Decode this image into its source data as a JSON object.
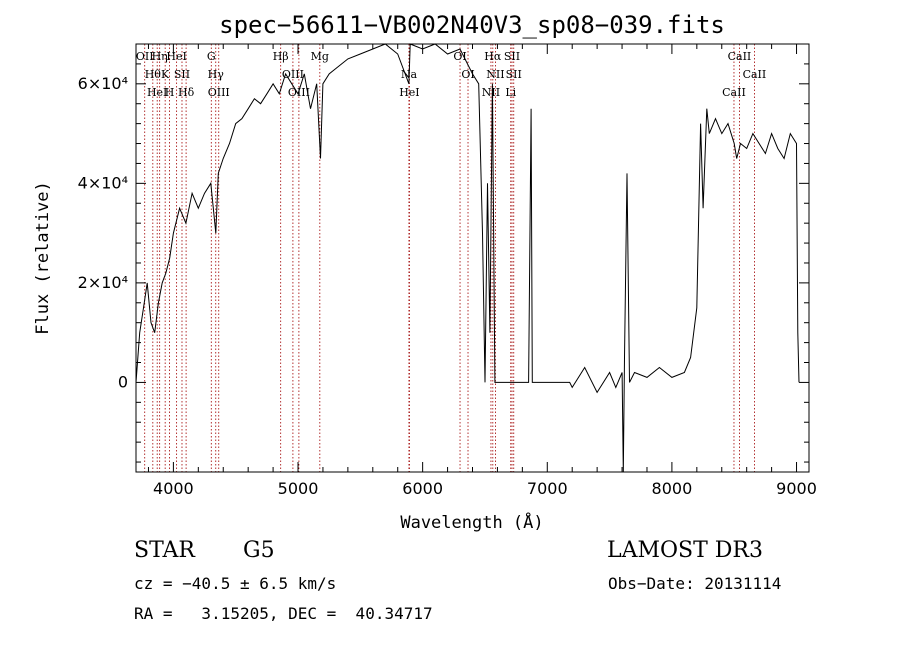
{
  "chart_data": {
    "type": "line",
    "title": "spec−56611−VB002N40V3_sp08−039.fits",
    "xlabel": "Wavelength (Å)",
    "ylabel": "Flux (relative)",
    "xlim": [
      3700,
      9100
    ],
    "ylim": [
      -18000,
      68000
    ],
    "x_ticks": [
      4000,
      5000,
      6000,
      7000,
      8000,
      9000
    ],
    "y_ticks": [
      {
        "value": 0,
        "label": "0"
      },
      {
        "value": 20000,
        "label": "2×10⁴"
      },
      {
        "value": 40000,
        "label": "4×10⁴"
      },
      {
        "value": 60000,
        "label": "6×10⁴"
      }
    ],
    "grid": false,
    "line_color": "#000000",
    "marker_color": "#a00000",
    "spectrum": {
      "x": [
        3700,
        3730,
        3760,
        3790,
        3820,
        3850,
        3880,
        3910,
        3940,
        3970,
        4000,
        4050,
        4100,
        4150,
        4200,
        4250,
        4300,
        4340,
        4360,
        4400,
        4450,
        4500,
        4550,
        4600,
        4650,
        4700,
        4750,
        4800,
        4850,
        4900,
        4950,
        5000,
        5050,
        5100,
        5150,
        5180,
        5200,
        5250,
        5300,
        5400,
        5500,
        5600,
        5700,
        5800,
        5890,
        5900,
        6000,
        6100,
        6200,
        6300,
        6400,
        6450,
        6480,
        6500,
        6520,
        6540,
        6560,
        6580,
        6600,
        6650,
        6700,
        6750,
        6800,
        6850,
        6870,
        6880,
        6900,
        7000,
        7100,
        7180,
        7200,
        7300,
        7400,
        7500,
        7550,
        7600,
        7610,
        7620,
        7640,
        7660,
        7700,
        7800,
        7900,
        8000,
        8100,
        8150,
        8200,
        8230,
        8250,
        8280,
        8300,
        8350,
        8400,
        8450,
        8500,
        8520,
        8550,
        8600,
        8650,
        8700,
        8750,
        8800,
        8850,
        8900,
        8950,
        9000,
        9010,
        9020
      ],
      "y": [
        0,
        10000,
        15000,
        20000,
        12000,
        10000,
        16000,
        20000,
        22000,
        25000,
        30000,
        35000,
        32000,
        38000,
        35000,
        38000,
        40000,
        30000,
        42000,
        45000,
        48000,
        52000,
        53000,
        55000,
        57000,
        56000,
        58000,
        60000,
        58000,
        62000,
        60000,
        58000,
        62000,
        55000,
        60000,
        45000,
        60000,
        62000,
        63000,
        65000,
        66000,
        67000,
        68000,
        66000,
        60000,
        68000,
        67000,
        68000,
        66000,
        67000,
        62000,
        60000,
        30000,
        0,
        40000,
        10000,
        60000,
        0,
        0,
        0,
        0,
        0,
        0,
        0,
        55000,
        0,
        0,
        0,
        0,
        0,
        -1000,
        3000,
        -2000,
        2000,
        -1000,
        2000,
        -18000,
        5000,
        42000,
        0,
        2000,
        1000,
        3000,
        1000,
        2000,
        5000,
        15000,
        52000,
        35000,
        55000,
        50000,
        53000,
        50000,
        52000,
        48000,
        45000,
        48000,
        47000,
        50000,
        48000,
        46000,
        50000,
        47000,
        45000,
        50000,
        48000,
        10000,
        0
      ]
    },
    "lines_top": [
      {
        "x": 3770,
        "label": "OII"
      },
      {
        "x": 3835,
        "label": "Hθ"
      },
      {
        "x": 3870,
        "label": "HeI"
      },
      {
        "x": 3890,
        "label": "Hη"
      },
      {
        "x": 3934,
        "label": "K"
      },
      {
        "x": 3969,
        "label": "H"
      },
      {
        "x": 4026,
        "label": "HeI"
      },
      {
        "x": 4069,
        "label": "SII"
      },
      {
        "x": 4102,
        "label": "Hδ"
      },
      {
        "x": 4304,
        "label": "G"
      },
      {
        "x": 4340,
        "label": "Hγ"
      },
      {
        "x": 4364,
        "label": "OIII"
      },
      {
        "x": 4861,
        "label": "Hβ"
      },
      {
        "x": 4959,
        "label": "OIII"
      },
      {
        "x": 5007,
        "label": "OIII"
      },
      {
        "x": 5175,
        "label": "Mg"
      },
      {
        "x": 5890,
        "label": "Na"
      },
      {
        "x": 5894,
        "label": "HeI"
      },
      {
        "x": 6300,
        "label": "OI"
      },
      {
        "x": 6364,
        "label": "OI"
      },
      {
        "x": 6548,
        "label": "NII"
      },
      {
        "x": 6563,
        "label": "Hα"
      },
      {
        "x": 6584,
        "label": "NII"
      },
      {
        "x": 6707,
        "label": "Li"
      },
      {
        "x": 6717,
        "label": "SII"
      },
      {
        "x": 6731,
        "label": "SII"
      },
      {
        "x": 8498,
        "label": "CaII"
      },
      {
        "x": 8542,
        "label": "CaII"
      },
      {
        "x": 8662,
        "label": "CaII"
      }
    ]
  },
  "info": {
    "object_class": "STAR",
    "subclass": "G5",
    "survey": "LAMOST DR3",
    "redshift": "cz = −40.5 ± 6.5 km/s",
    "obs_date": "Obs−Date: 20131114",
    "coords": "RA =   3.15205, DEC =  40.34717"
  }
}
